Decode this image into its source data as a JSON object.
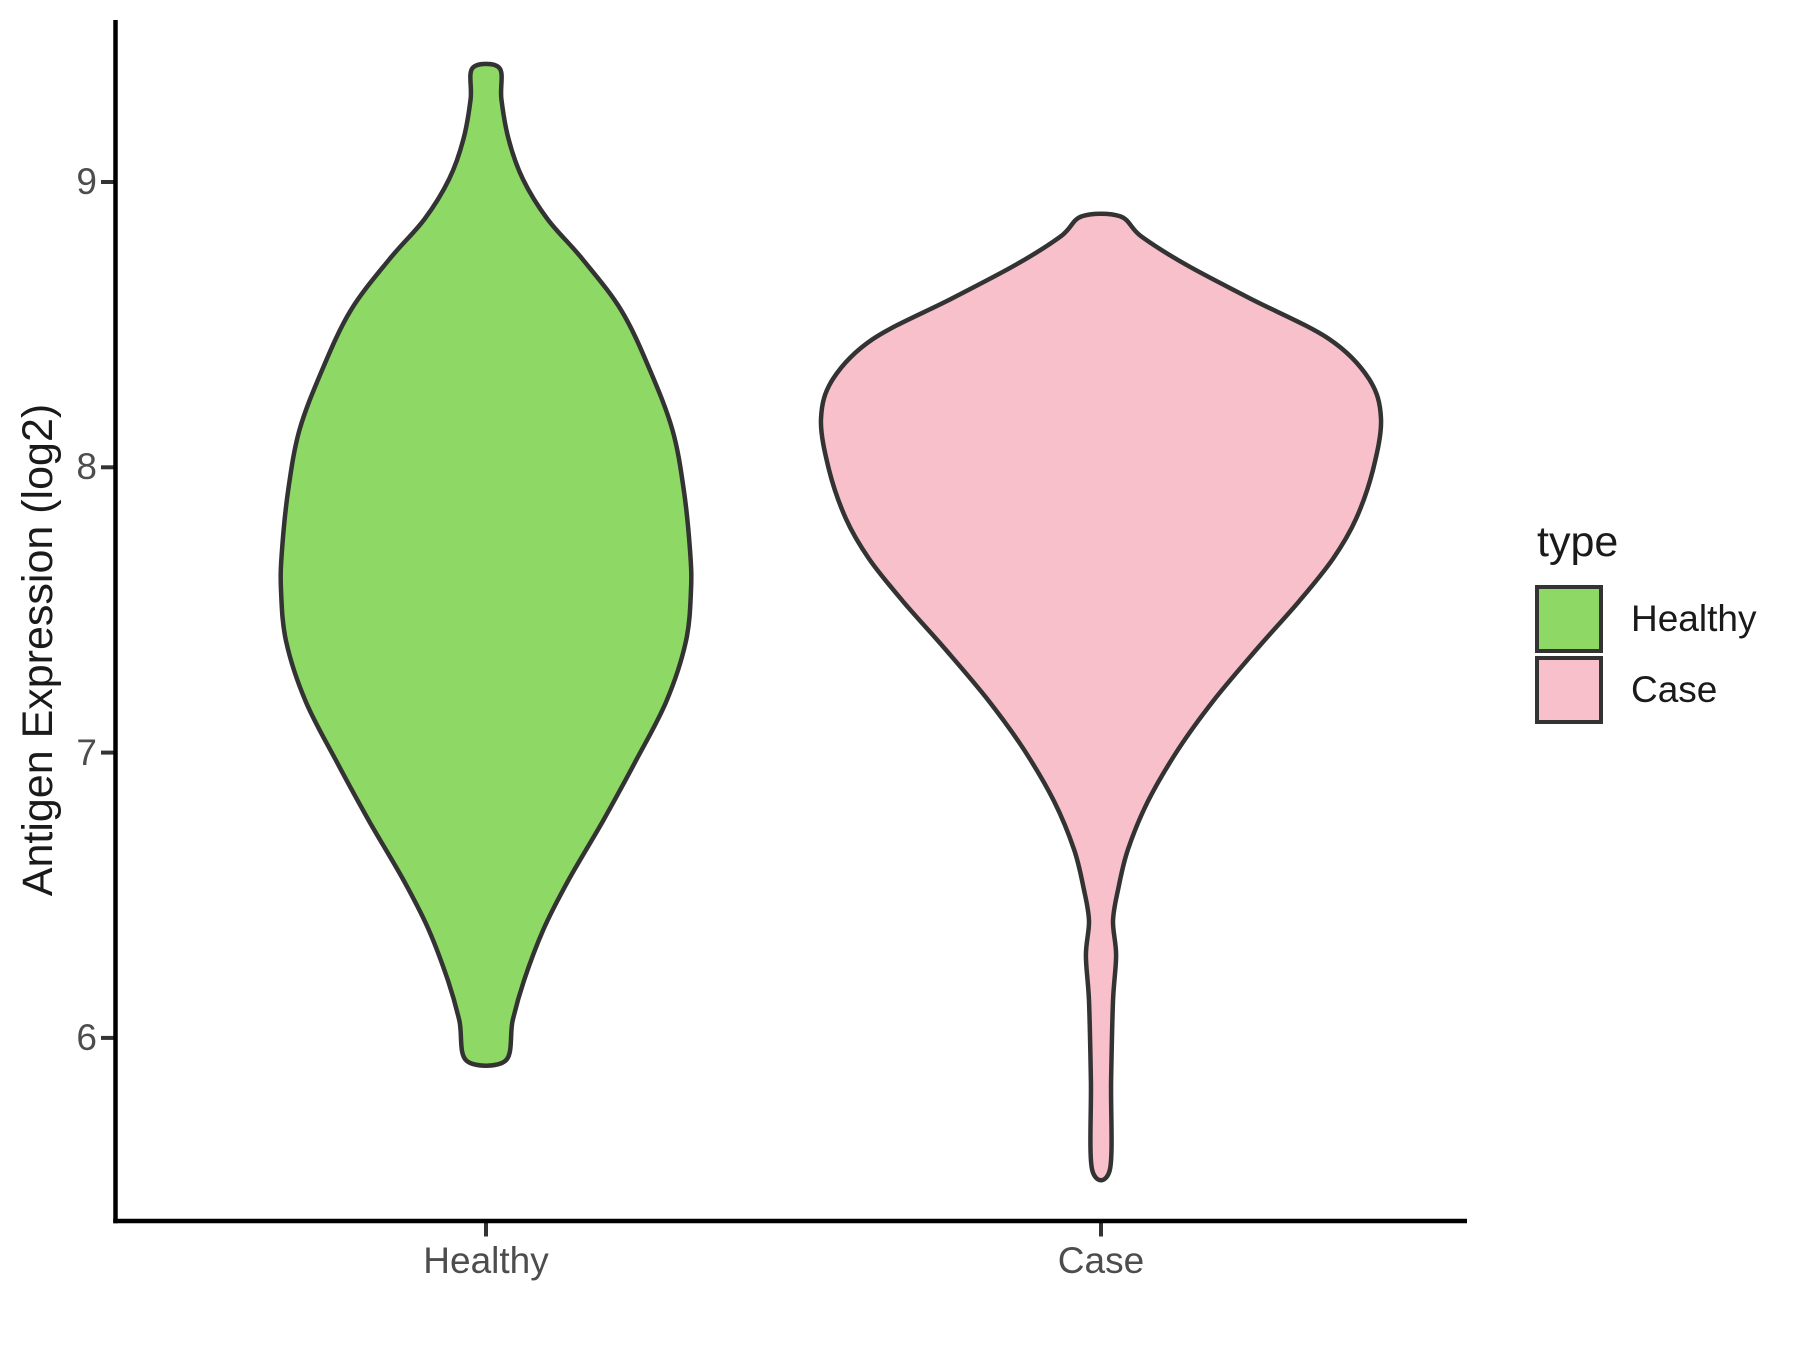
{
  "figure": {
    "y_axis": {
      "title": "Antigen Expression (log2)",
      "tick_labels": [
        "9",
        "8",
        "7",
        "6"
      ]
    },
    "x_axis": {
      "tick_labels": [
        "Healthy",
        "Case"
      ]
    },
    "legend": {
      "title": "type",
      "entries": [
        {
          "label": "Healthy",
          "color": "#8ED965"
        },
        {
          "label": "Case",
          "color": "#F8C0CA"
        }
      ]
    }
  },
  "chart_data": {
    "type": "violin",
    "title": "",
    "xlabel": "",
    "ylabel": "Antigen Expression (log2)",
    "categories": [
      "Healthy",
      "Case"
    ],
    "y_ticks": [
      9,
      8,
      7,
      6
    ],
    "ylim": [
      5.4,
      9.6
    ],
    "grid": false,
    "legend_position": "right",
    "legend_title": "type",
    "axis_color": "#000000",
    "tick_color": "#333333",
    "outline_color": "#333333",
    "series": [
      {
        "name": "Healthy",
        "fill": "#8ED965",
        "stroke": "#333333",
        "y_min": 5.92,
        "y_max": 9.4,
        "widest_at": 7.57,
        "profile": [
          [
            9.4,
            0.065
          ],
          [
            9.29,
            0.075
          ],
          [
            9.15,
            0.11
          ],
          [
            9.01,
            0.18
          ],
          [
            8.87,
            0.3
          ],
          [
            8.73,
            0.47
          ],
          [
            8.55,
            0.66
          ],
          [
            8.34,
            0.8
          ],
          [
            8.13,
            0.91
          ],
          [
            7.92,
            0.965
          ],
          [
            7.71,
            0.995
          ],
          [
            7.57,
            1.0
          ],
          [
            7.39,
            0.975
          ],
          [
            7.18,
            0.88
          ],
          [
            6.97,
            0.73
          ],
          [
            6.76,
            0.57
          ],
          [
            6.55,
            0.4
          ],
          [
            6.38,
            0.28
          ],
          [
            6.2,
            0.185
          ],
          [
            6.06,
            0.13
          ],
          [
            5.92,
            0.095
          ]
        ]
      },
      {
        "name": "Case",
        "fill": "#F8C0CA",
        "stroke": "#333333",
        "y_min": 5.54,
        "y_max": 8.88,
        "widest_at": 8.17,
        "profile": [
          [
            8.88,
            0.068
          ],
          [
            8.81,
            0.143
          ],
          [
            8.71,
            0.304
          ],
          [
            8.59,
            0.536
          ],
          [
            8.45,
            0.814
          ],
          [
            8.31,
            0.957
          ],
          [
            8.17,
            1.0
          ],
          [
            7.99,
            0.971
          ],
          [
            7.82,
            0.911
          ],
          [
            7.68,
            0.829
          ],
          [
            7.53,
            0.707
          ],
          [
            7.36,
            0.554
          ],
          [
            7.18,
            0.4
          ],
          [
            7.01,
            0.275
          ],
          [
            6.83,
            0.168
          ],
          [
            6.66,
            0.096
          ],
          [
            6.52,
            0.061
          ],
          [
            6.41,
            0.043
          ],
          [
            6.29,
            0.054
          ],
          [
            6.13,
            0.043
          ],
          [
            5.85,
            0.036
          ],
          [
            5.54,
            0.032
          ]
        ]
      }
    ]
  }
}
